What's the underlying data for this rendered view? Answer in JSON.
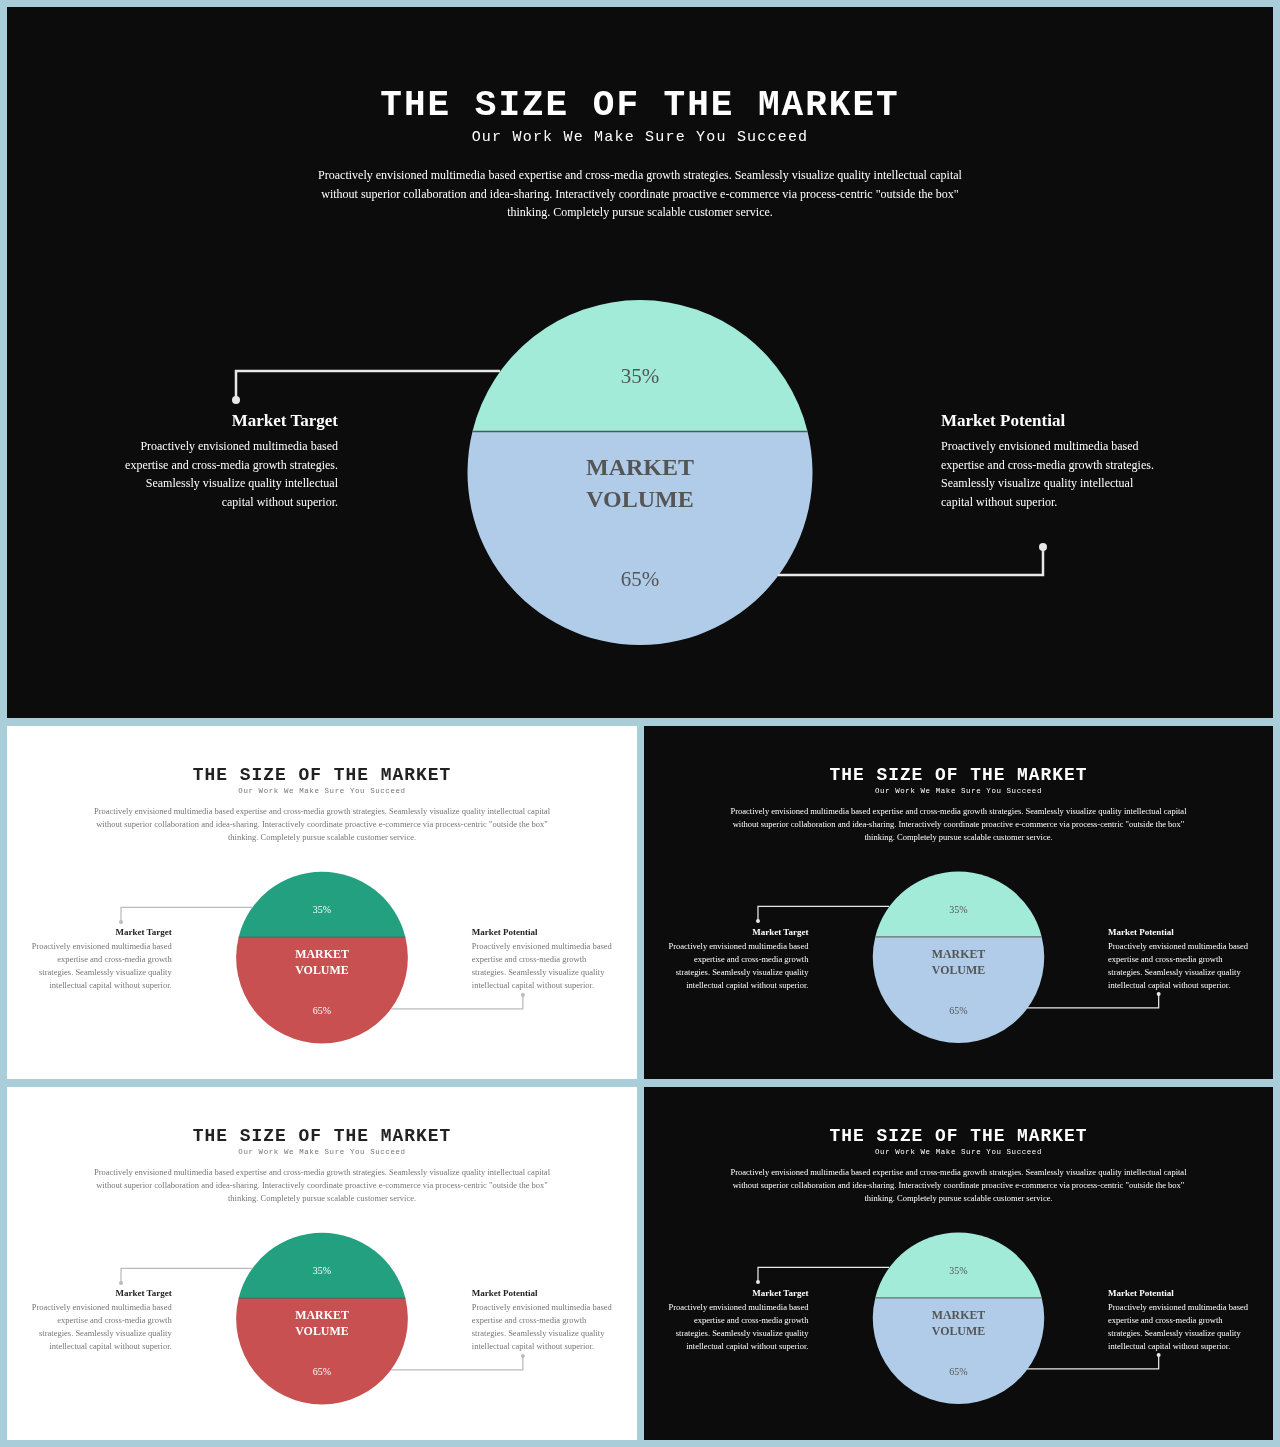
{
  "chart_data": [
    {
      "type": "other",
      "title": "THE SIZE OF THE MARKET",
      "subtitle": "Our Work We Make Sure You Succeed",
      "categories": [
        null,
        null
      ],
      "values": [
        35,
        65
      ],
      "value_labels": [
        "35%",
        "65%"
      ],
      "colors": [
        "#a2ebd8",
        "#b0cce8"
      ],
      "annotations": [
        "Proactively envisioned multimedia based expertise and cross-media growth strategies. Seamlessly visualize quality intellectual capital without superior collaboration and idea-sharing.  Interactively coordinate proactive e-commerce via process-centric \"outside the box\" thinking. Completely pursue scalable customer service.",
        "Market Target",
        "Proactively envisioned multimedia based expertise and cross-media growth strategies. Seamlessly visualize quality intellectual capital without superior.",
        "Market Potential",
        "Proactively envisioned multimedia based expertise and cross-media growth strategies. Seamlessly visualize quality intellectual capital without superior.",
        "MARKET VOLUME"
      ]
    },
    {
      "type": "other",
      "title": "THE SIZE OF THE MARKET",
      "subtitle": "Our Work We Make Sure You Succeed",
      "categories": [
        null,
        null
      ],
      "values": [
        35,
        65
      ],
      "value_labels": [
        "35%",
        "65%"
      ],
      "colors": [
        "#22a080",
        "#c85050"
      ],
      "annotations": [
        "Proactively envisioned multimedia based expertise and cross-media growth strategies. Seamlessly visualize quality intellectual capital without superior collaboration and idea-sharing.  Interactively coordinate proactive e-commerce via process-centric \"outside the box\" thinking. Completely pursue scalable customer service.",
        "Market Target",
        "Proactively envisioned multimedia based expertise and cross-media growth strategies. Seamlessly visualize quality intellectual capital without superior.",
        "Market Potential",
        "Proactively envisioned multimedia based expertise and cross-media growth strategies. Seamlessly visualize quality intellectual capital without superior.",
        "MARKET VOLUME"
      ]
    },
    {
      "type": "other",
      "title": "THE SIZE OF THE MARKET",
      "subtitle": "Our Work We Make Sure You Succeed",
      "categories": [
        null,
        null
      ],
      "values": [
        35,
        65
      ],
      "value_labels": [
        "35%",
        "65%"
      ],
      "colors": [
        "#a2ebd8",
        "#b0cce8"
      ],
      "annotations": [
        "Proactively envisioned multimedia based expertise and cross-media growth strategies. Seamlessly visualize quality intellectual capital without superior collaboration and idea-sharing.  Interactively coordinate proactive e-commerce via process-centric \"outside the box\" thinking. Completely pursue scalable customer service.",
        "Market Target",
        "Proactively envisioned multimedia based expertise and cross-media growth strategies. Seamlessly visualize quality intellectual capital without superior.",
        "Market Potential",
        "Proactively envisioned multimedia based expertise and cross-media growth strategies. Seamlessly visualize quality intellectual capital without superior.",
        "MARKET VOLUME"
      ]
    },
    {
      "type": "other",
      "title": "THE SIZE OF THE MARKET",
      "subtitle": "Our Work We Make Sure You Succeed",
      "categories": [
        null,
        null
      ],
      "values": [
        35,
        65
      ],
      "value_labels": [
        "35%",
        "65%"
      ],
      "colors": [
        "#22a080",
        "#c85050"
      ],
      "annotations": [
        "Proactively envisioned multimedia based expertise and cross-media growth strategies. Seamlessly visualize quality intellectual capital without superior collaboration and idea-sharing.  Interactively coordinate proactive e-commerce via process-centric \"outside the box\" thinking. Completely pursue scalable customer service.",
        "Market Target",
        "Proactively envisioned multimedia based expertise and cross-media growth strategies. Seamlessly visualize quality intellectual capital without superior.",
        "Market Potential",
        "Proactively envisioned multimedia based expertise and cross-media growth strategies. Seamlessly visualize quality intellectual capital without superior.",
        "MARKET VOLUME"
      ]
    },
    {
      "type": "other",
      "title": "THE SIZE OF THE MARKET",
      "subtitle": "Our Work We Make Sure You Succeed",
      "categories": [
        null,
        null
      ],
      "values": [
        35,
        65
      ],
      "value_labels": [
        "35%",
        "65%"
      ],
      "colors": [
        "#a2ebd8",
        "#b0cce8"
      ],
      "annotations": [
        "Proactively envisioned multimedia based expertise and cross-media growth strategies. Seamlessly visualize quality intellectual capital without superior collaboration and idea-sharing.  Interactively coordinate proactive e-commerce via process-centric \"outside the box\" thinking. Completely pursue scalable customer service.",
        "Market Target",
        "Proactively envisioned multimedia based expertise and cross-media growth strategies. Seamlessly visualize quality intellectual capital without superior.",
        "Market Potential",
        "Proactively envisioned multimedia based expertise and cross-media growth strategies. Seamlessly visualize quality intellectual capital without superior.",
        "MARKET VOLUME"
      ]
    }
  ]
}
